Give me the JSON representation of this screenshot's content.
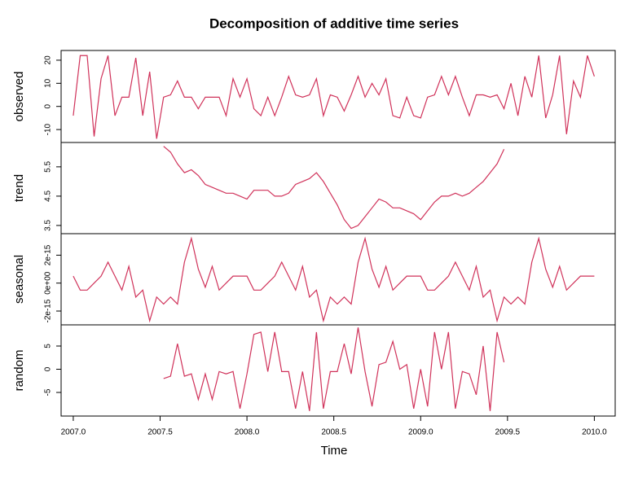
{
  "chart_data": [
    {
      "type": "line",
      "title": "Decomposition of additive time series",
      "ylabel": "observed",
      "color": "#d0325a",
      "xlim": [
        2006.93,
        2010.12
      ],
      "ylim": [
        -15.6,
        24.2
      ],
      "yticks": [
        -10,
        0,
        10,
        20
      ],
      "x": [
        2007,
        2007.04,
        2007.08,
        2007.12,
        2007.16,
        2007.2,
        2007.24,
        2007.28,
        2007.32,
        2007.36,
        2007.4,
        2007.44,
        2007.48,
        2007.52,
        2007.56,
        2007.6,
        2007.64,
        2007.68,
        2007.72,
        2007.76,
        2007.8,
        2007.84,
        2007.88,
        2007.92,
        2007.96,
        2008,
        2008.04,
        2008.08,
        2008.12,
        2008.16,
        2008.2,
        2008.24,
        2008.28,
        2008.32,
        2008.36,
        2008.4,
        2008.44,
        2008.48,
        2008.52,
        2008.56,
        2008.6,
        2008.64,
        2008.68,
        2008.72,
        2008.76,
        2008.8,
        2008.84,
        2008.88,
        2008.92,
        2008.96,
        2009,
        2009.04,
        2009.08,
        2009.12,
        2009.16,
        2009.2,
        2009.24,
        2009.28,
        2009.32,
        2009.36,
        2009.4,
        2009.44,
        2009.48,
        2009.52,
        2009.56,
        2009.6,
        2009.64,
        2009.68,
        2009.72,
        2009.76,
        2009.8,
        2009.84,
        2009.88,
        2009.92,
        2009.96,
        2010
      ],
      "values": [
        -4,
        22,
        22,
        -13,
        12,
        22,
        -4,
        4,
        4,
        21,
        -4,
        15,
        -14,
        4,
        5,
        11,
        4,
        4,
        -1,
        4,
        4,
        4,
        -4,
        12,
        4,
        12,
        -1,
        -4,
        4,
        -4,
        4,
        13,
        5,
        4,
        5,
        12,
        -4,
        5,
        4,
        -2,
        5,
        13,
        4,
        10,
        5,
        12,
        -4,
        -5,
        4,
        -4,
        -5,
        4,
        5,
        13,
        5,
        13,
        4,
        -4,
        5,
        5,
        4,
        5,
        -1,
        10,
        -4,
        13,
        4,
        22,
        -5,
        5,
        22,
        -12,
        11,
        4,
        22,
        13
      ]
    },
    {
      "type": "line",
      "ylabel": "trend",
      "color": "#d0325a",
      "xlim": [
        2006.93,
        2010.12
      ],
      "ylim": [
        3.22,
        6.33
      ],
      "yticks": [
        3.5,
        4.5,
        5.5
      ],
      "x": [
        2007.52,
        2007.56,
        2007.6,
        2007.64,
        2007.68,
        2007.72,
        2007.76,
        2007.8,
        2007.84,
        2007.88,
        2007.92,
        2007.96,
        2008,
        2008.04,
        2008.08,
        2008.12,
        2008.16,
        2008.2,
        2008.24,
        2008.28,
        2008.32,
        2008.36,
        2008.4,
        2008.44,
        2008.48,
        2008.52,
        2008.56,
        2008.6,
        2008.64,
        2008.68,
        2008.72,
        2008.76,
        2008.8,
        2008.84,
        2008.88,
        2008.92,
        2008.96,
        2009,
        2009.04,
        2009.08,
        2009.12,
        2009.16,
        2009.2,
        2009.24,
        2009.28,
        2009.32,
        2009.36,
        2009.4,
        2009.44,
        2009.48
      ],
      "values": [
        6.2,
        6.0,
        5.6,
        5.3,
        5.4,
        5.2,
        4.9,
        4.8,
        4.7,
        4.6,
        4.6,
        4.5,
        4.4,
        4.7,
        4.7,
        4.7,
        4.5,
        4.5,
        4.6,
        4.9,
        5.0,
        5.1,
        5.3,
        5.0,
        4.6,
        4.2,
        3.7,
        3.4,
        3.5,
        3.8,
        4.1,
        4.4,
        4.3,
        4.1,
        4.1,
        4.0,
        3.9,
        3.7,
        4.0,
        4.3,
        4.5,
        4.5,
        4.6,
        4.5,
        4.6,
        4.8,
        5.0,
        5.3,
        5.6,
        6.1
      ]
    },
    {
      "type": "line",
      "ylabel": "seasonal",
      "color": "#d0325a",
      "xlim": [
        2006.93,
        2010.12
      ],
      "ylim": [
        -2.99e-15,
        3.54e-15
      ],
      "yticks": [
        {
          "value": -2e-15,
          "label": "-2e-15"
        },
        {
          "value": 0,
          "label": "0e+00"
        },
        {
          "value": 2e-15,
          "label": "2e-15"
        }
      ],
      "x": [
        2007,
        2007.04,
        2007.08,
        2007.12,
        2007.16,
        2007.2,
        2007.24,
        2007.28,
        2007.32,
        2007.36,
        2007.4,
        2007.44,
        2007.48,
        2007.52,
        2007.56,
        2007.6,
        2007.64,
        2007.68,
        2007.72,
        2007.76,
        2007.8,
        2007.84,
        2007.88,
        2007.92,
        2007.96,
        2008,
        2008.04,
        2008.08,
        2008.12,
        2008.16,
        2008.2,
        2008.24,
        2008.28,
        2008.32,
        2008.36,
        2008.4,
        2008.44,
        2008.48,
        2008.52,
        2008.56,
        2008.6,
        2008.64,
        2008.68,
        2008.72,
        2008.76,
        2008.8,
        2008.84,
        2008.88,
        2008.92,
        2008.96,
        2009,
        2009.04,
        2009.08,
        2009.12,
        2009.16,
        2009.2,
        2009.24,
        2009.28,
        2009.32,
        2009.36,
        2009.4,
        2009.44,
        2009.48,
        2009.52,
        2009.56,
        2009.6,
        2009.64,
        2009.68,
        2009.72,
        2009.76,
        2009.8,
        2009.84,
        2009.88,
        2009.92,
        2009.96,
        2010
      ],
      "values": [
        5e-16,
        -5e-16,
        -5e-16,
        0,
        5e-16,
        1.5e-15,
        5e-16,
        -5e-16,
        1.2e-15,
        -1e-15,
        -5e-16,
        -2.7e-15,
        -1e-15,
        -1.5e-15,
        -1e-15,
        -1.5e-15,
        1.5e-15,
        3.2e-15,
        1e-15,
        -3e-16,
        1.2e-15,
        -5e-16,
        0,
        5e-16,
        5e-16,
        5e-16,
        -5e-16,
        -5e-16,
        0,
        5e-16,
        1.5e-15,
        5e-16,
        -5e-16,
        1.2e-15,
        -1e-15,
        -5e-16,
        -2.7e-15,
        -1e-15,
        -1.5e-15,
        -1e-15,
        -1.5e-15,
        1.5e-15,
        3.2e-15,
        1e-15,
        -3e-16,
        1.2e-15,
        -5e-16,
        0,
        5e-16,
        5e-16,
        5e-16,
        -5e-16,
        -5e-16,
        0,
        5e-16,
        1.5e-15,
        5e-16,
        -5e-16,
        1.2e-15,
        -1e-15,
        -5e-16,
        -2.7e-15,
        -1e-15,
        -1.5e-15,
        -1e-15,
        -1.5e-15,
        1.5e-15,
        3.2e-15,
        1e-15,
        -3e-16,
        1.2e-15,
        -5e-16,
        0,
        5e-16,
        5e-16,
        5e-16
      ]
    },
    {
      "type": "line",
      "ylabel": "random",
      "xlabel": "Time",
      "color": "#d0325a",
      "xlim": [
        2006.93,
        2010.12
      ],
      "ylim": [
        -10.09,
        9.56
      ],
      "yticks": [
        -5,
        0,
        5
      ],
      "xticks": [
        {
          "value": 2007,
          "label": "2007.0"
        },
        2007.5,
        {
          "value": 2008,
          "label": "2008.0"
        },
        2008.5,
        {
          "value": 2009,
          "label": "2009.0"
        },
        2009.5,
        {
          "value": 2010,
          "label": "2010.0"
        }
      ],
      "x": [
        2007.52,
        2007.56,
        2007.6,
        2007.64,
        2007.68,
        2007.72,
        2007.76,
        2007.8,
        2007.84,
        2007.88,
        2007.92,
        2007.96,
        2008,
        2008.04,
        2008.08,
        2008.12,
        2008.16,
        2008.2,
        2008.24,
        2008.28,
        2008.32,
        2008.36,
        2008.4,
        2008.44,
        2008.48,
        2008.52,
        2008.56,
        2008.6,
        2008.64,
        2008.68,
        2008.72,
        2008.76,
        2008.8,
        2008.84,
        2008.88,
        2008.92,
        2008.96,
        2009,
        2009.04,
        2009.08,
        2009.12,
        2009.16,
        2009.2,
        2009.24,
        2009.28,
        2009.32,
        2009.36,
        2009.4,
        2009.44,
        2009.48
      ],
      "values": [
        -2,
        -1.5,
        5.5,
        -1.5,
        -1,
        -6.5,
        -1,
        -6.5,
        -0.5,
        -1,
        -0.5,
        -8.5,
        -1,
        7.5,
        8,
        -0.5,
        8,
        -0.5,
        -0.5,
        -8.5,
        -0.5,
        -9,
        8,
        -8.5,
        -0.5,
        -0.5,
        5.5,
        -1,
        9,
        -0.5,
        -8,
        1,
        1.5,
        6,
        0,
        1,
        -8.5,
        0,
        -8,
        8,
        0,
        8,
        -8.5,
        -0.5,
        -1,
        -5.5,
        5,
        -9,
        8,
        1.5
      ]
    }
  ]
}
